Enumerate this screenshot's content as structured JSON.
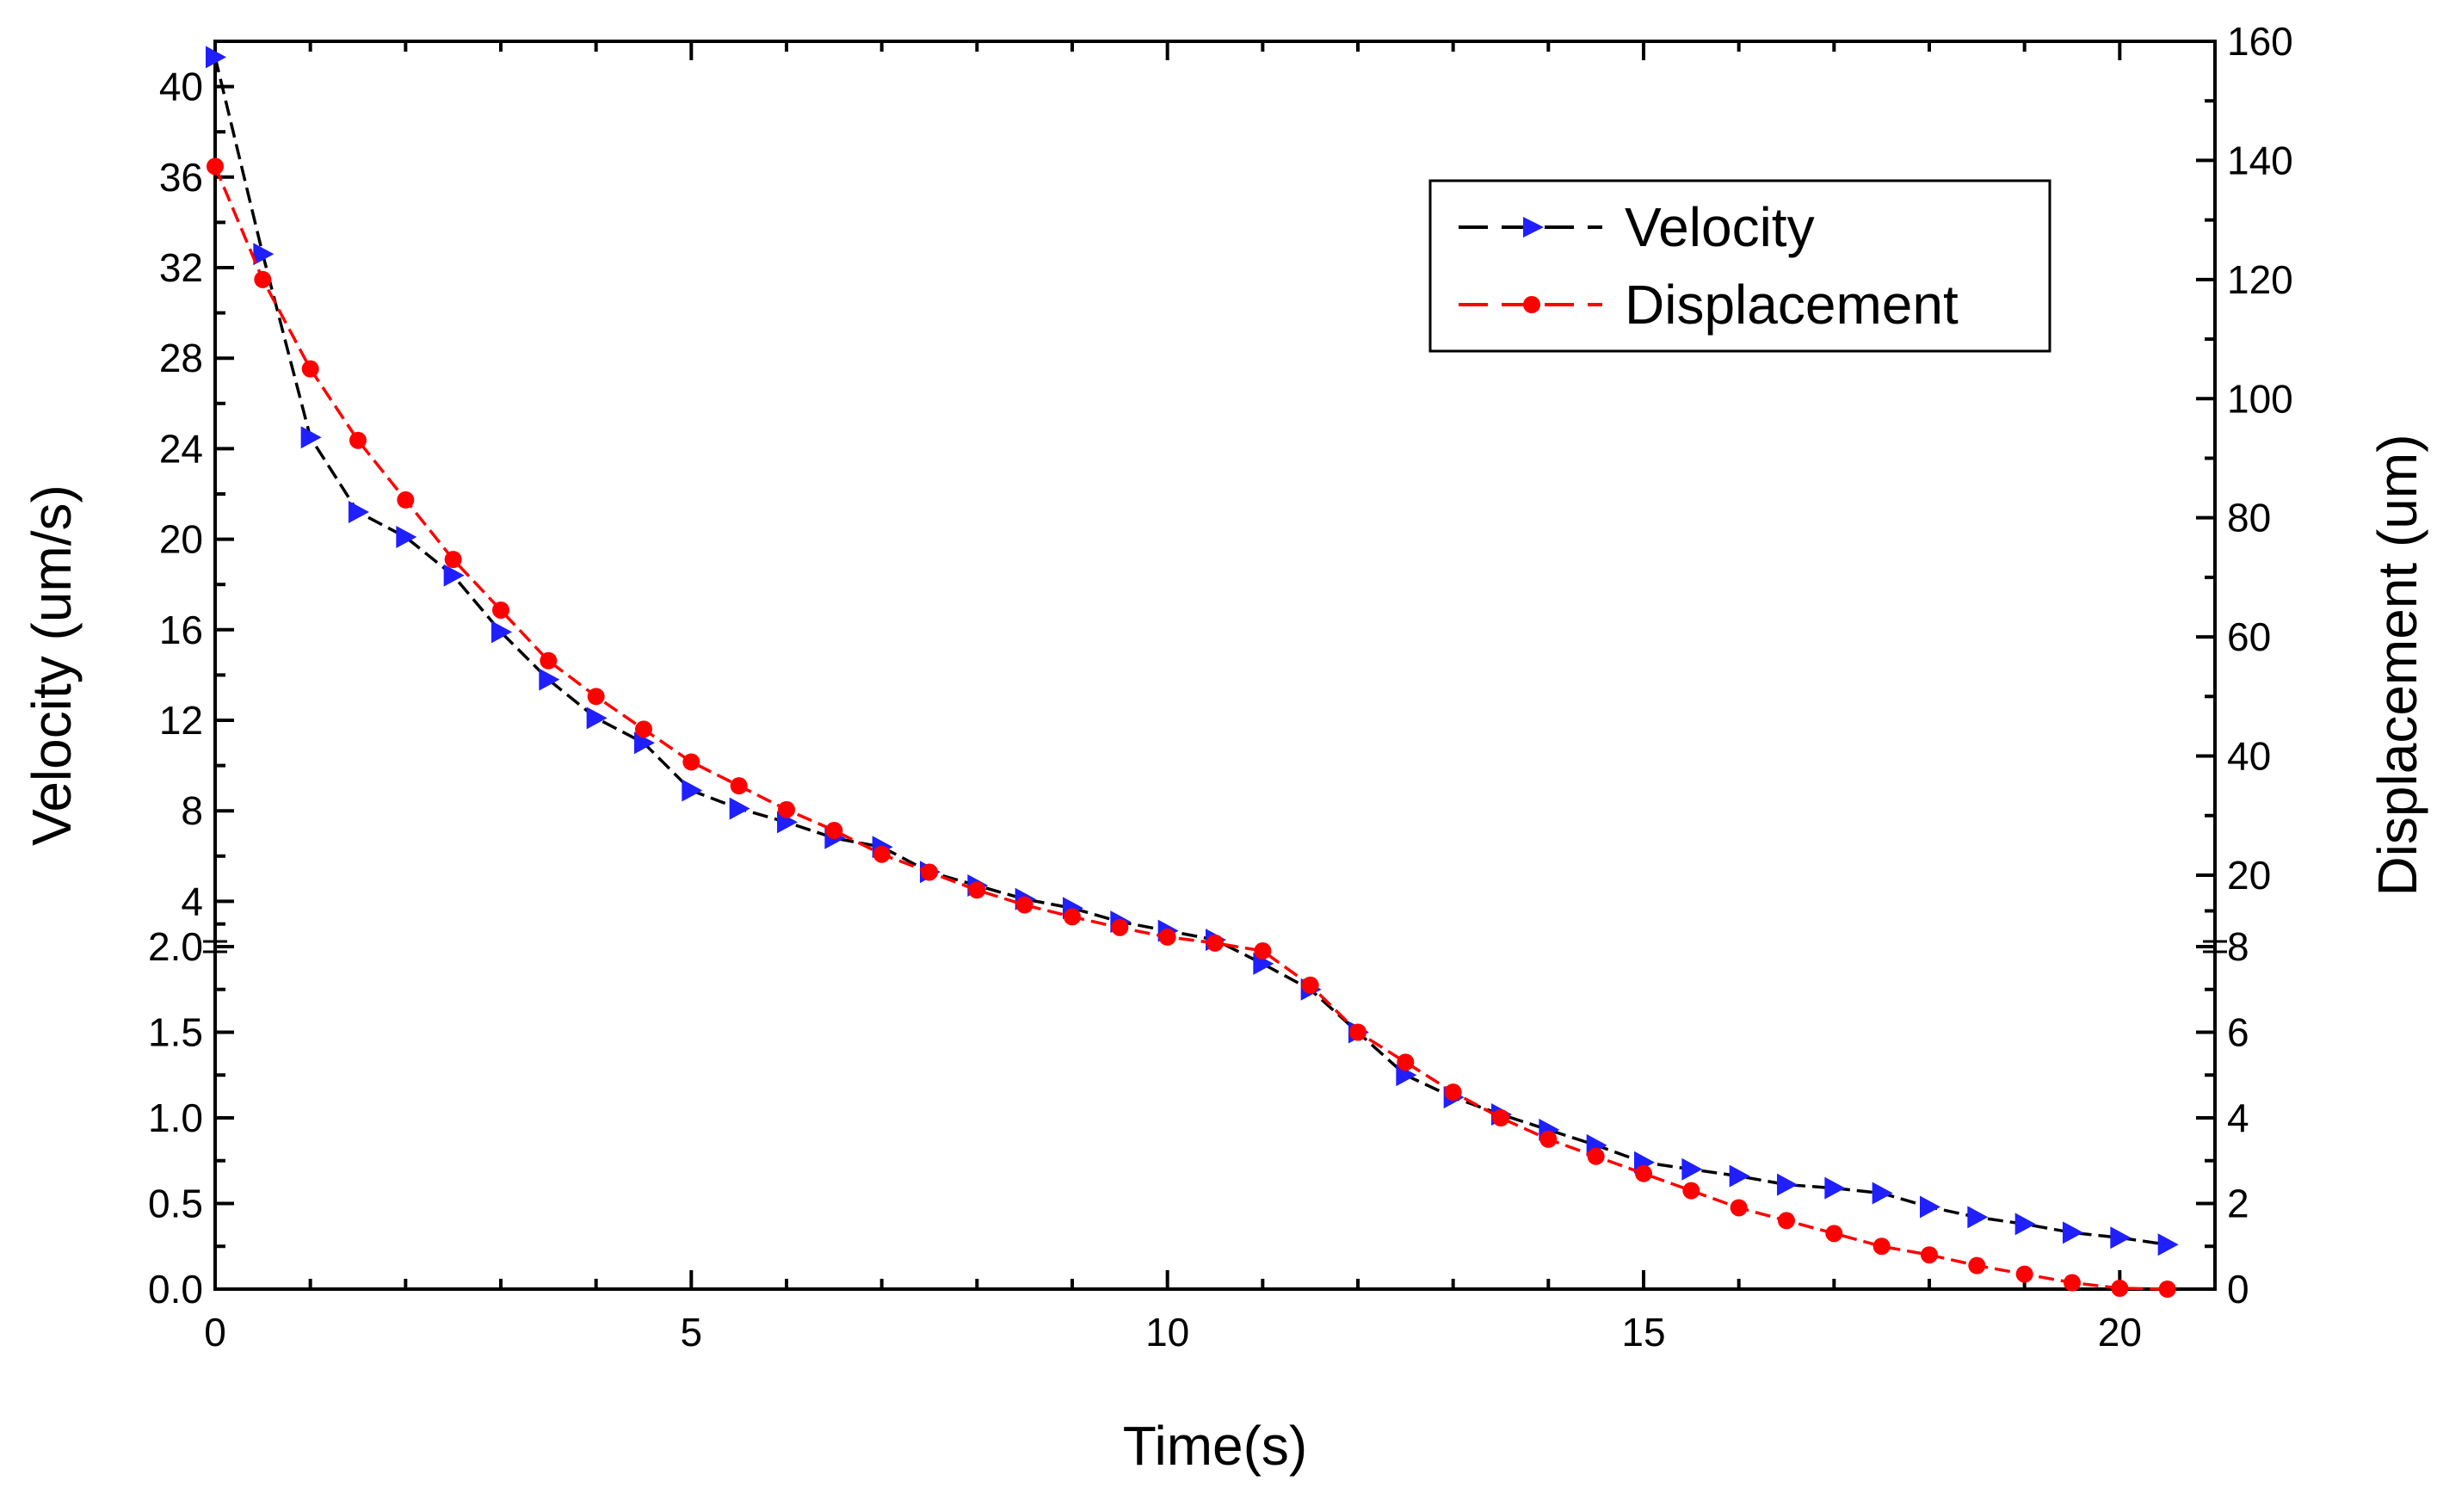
{
  "chart_data": {
    "type": "line",
    "title": "",
    "xlabel": "Time(s)",
    "ylabel_left": "Velocity (um/s)",
    "ylabel_right": "Displacement (um)",
    "xlim": [
      0,
      21
    ],
    "x_ticks": [
      0,
      5,
      10,
      15,
      20
    ],
    "x_tick_labels": [
      "0",
      "5",
      "10",
      "15",
      "20"
    ],
    "left_axis": {
      "breaks": [
        {
          "range": [
            0,
            2.0
          ],
          "ticks": [
            0.0,
            0.5,
            1.0,
            1.5,
            2.0
          ],
          "tick_labels": [
            "0.0",
            "0.5",
            "1.0",
            "1.5",
            "2.0"
          ]
        },
        {
          "range": [
            2.0,
            42
          ],
          "ticks": [
            4,
            8,
            12,
            16,
            20,
            24,
            28,
            32,
            36,
            40
          ],
          "tick_labels": [
            "4",
            "8",
            "12",
            "16",
            "20",
            "24",
            "28",
            "32",
            "36",
            "40"
          ]
        }
      ]
    },
    "right_axis": {
      "breaks": [
        {
          "range": [
            0,
            8
          ],
          "ticks": [
            0,
            2,
            4,
            6,
            8
          ],
          "tick_labels": [
            "0",
            "2",
            "4",
            "6",
            "8"
          ]
        },
        {
          "range": [
            8,
            160
          ],
          "ticks": [
            20,
            40,
            60,
            80,
            100,
            120,
            140,
            160
          ],
          "tick_labels": [
            "20",
            "40",
            "60",
            "80",
            "100",
            "120",
            "140",
            "160"
          ]
        }
      ]
    },
    "legend_position": "top-right",
    "series": [
      {
        "name": "Velocity",
        "axis": "left",
        "line_color": "#000000",
        "marker_color": "#1f1fff",
        "marker": "triangle-right",
        "x": [
          0,
          0.5,
          1,
          1.5,
          2,
          2.5,
          3,
          3.5,
          4,
          4.5,
          5,
          5.5,
          6,
          6.5,
          7,
          7.5,
          8,
          8.5,
          9,
          9.5,
          10,
          10.5,
          11,
          11.5,
          12,
          12.5,
          13,
          13.5,
          14,
          14.5,
          15,
          15.5,
          16,
          16.5,
          17,
          17.5,
          18,
          18.5,
          19,
          19.5,
          20,
          20.5
        ],
        "y": [
          41.3,
          32.6,
          24.5,
          21.2,
          20.1,
          18.4,
          15.9,
          13.8,
          12.1,
          11.0,
          8.9,
          8.1,
          7.5,
          6.8,
          6.4,
          5.3,
          4.7,
          4.1,
          3.7,
          3.1,
          2.7,
          2.3,
          1.9,
          1.75,
          1.5,
          1.25,
          1.12,
          1.02,
          0.93,
          0.84,
          0.74,
          0.7,
          0.66,
          0.61,
          0.59,
          0.56,
          0.48,
          0.42,
          0.38,
          0.33,
          0.3,
          0.26
        ]
      },
      {
        "name": "Displacement",
        "axis": "right",
        "line_color": "#ff0000",
        "marker_color": "#ff0000",
        "marker": "circle",
        "x": [
          0,
          0.5,
          1,
          1.5,
          2,
          2.5,
          3,
          3.5,
          4,
          4.5,
          5,
          5.5,
          6,
          6.5,
          7,
          7.5,
          8,
          8.5,
          9,
          9.5,
          10,
          10.5,
          11,
          11.5,
          12,
          12.5,
          13,
          13.5,
          14,
          14.5,
          15,
          15.5,
          16,
          16.5,
          17,
          17.5,
          18,
          18.5,
          19,
          19.5,
          20,
          20.5
        ],
        "y": [
          139,
          120,
          105,
          93,
          83,
          73,
          64.5,
          56,
          50,
          44.5,
          39,
          35,
          31,
          27.5,
          23.5,
          20.5,
          17.5,
          15,
          13,
          11.2,
          9.6,
          8.6,
          7.9,
          7.1,
          6.0,
          5.3,
          4.6,
          4.0,
          3.5,
          3.1,
          2.7,
          2.3,
          1.9,
          1.6,
          1.3,
          1.0,
          0.8,
          0.55,
          0.35,
          0.15,
          0.02,
          0.0
        ]
      }
    ]
  }
}
